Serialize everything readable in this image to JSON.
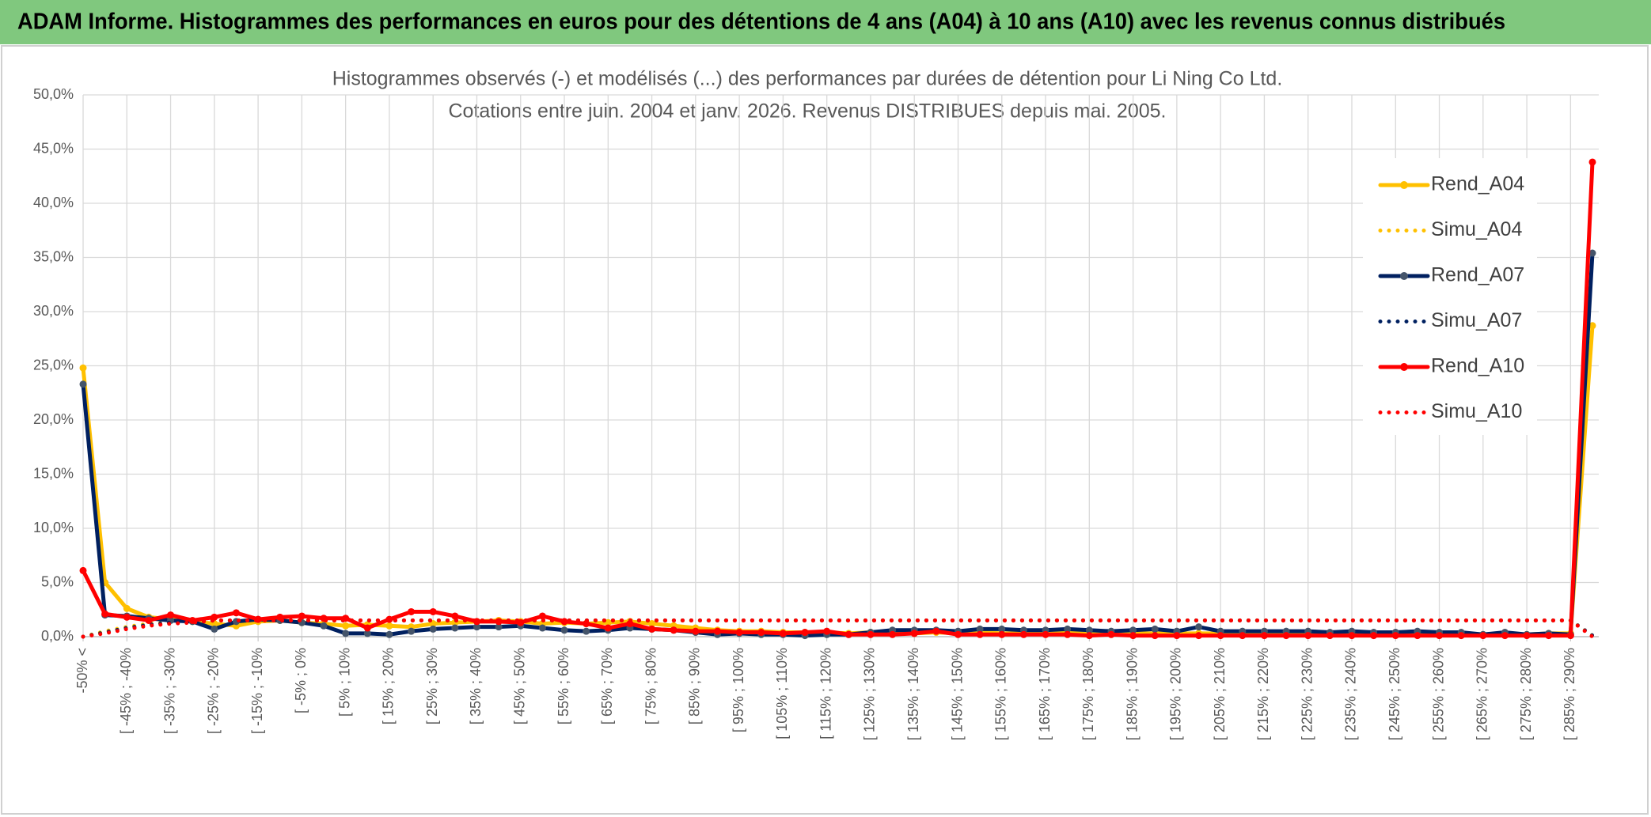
{
  "chart_data": {
    "type": "line",
    "header": "ADAM Informe. Histogrammes des performances en euros pour des détentions de 4 ans (A04) à 10 ans (A10) avec les revenus connus distribués",
    "title": "Histogrammes observés (-) et modélisés (...) des performances par durées de détention pour Li Ning Co Ltd.",
    "subtitle": "Cotations entre juin. 2004 et janv. 2026. Revenus DISTRIBUES depuis mai. 2005.",
    "categories": [
      "-50% <",
      null,
      "[ -45% ; -40%",
      null,
      "[ -35% ; -30%",
      null,
      "[ -25% ; -20%",
      null,
      "[ -15% ; -10%",
      null,
      "[ -5% ; 0%",
      null,
      "[ 5% ; 10%",
      null,
      "[ 15% ; 20%",
      null,
      "[ 25% ; 30%",
      null,
      "[ 35% ; 40%",
      null,
      "[ 45% ; 50%",
      null,
      "[ 55% ; 60%",
      null,
      "[ 65% ; 70%",
      null,
      "[ 75% ; 80%",
      null,
      "[ 85% ; 90%",
      null,
      "[ 95% ; 100%",
      null,
      "[ 105% ; 110%",
      null,
      "[ 115% ; 120%",
      null,
      "[ 125% ; 130%",
      null,
      "[ 135% ; 140%",
      null,
      "[ 145% ; 150%",
      null,
      "[ 155% ; 160%",
      null,
      "[ 165% ; 170%",
      null,
      "[ 175% ; 180%",
      null,
      "[ 185% ; 190%",
      null,
      "[ 195% ; 200%",
      null,
      "[ 205% ; 210%",
      null,
      "[ 215% ; 220%",
      null,
      "[ 225% ; 230%",
      null,
      "[ 235% ; 240%",
      null,
      "[ 245% ; 250%",
      null,
      "[ 255% ; 260%",
      null,
      "[ 265% ; 270%",
      null,
      "[ 275% ; 280%",
      null,
      "[ 285% ; 290%",
      null
    ],
    "series": [
      {
        "name": "Rend_A04",
        "color": "#FFC000",
        "line_style": "solid",
        "values": [
          24.8,
          5.0,
          2.6,
          1.8,
          1.6,
          1.4,
          1.2,
          1.0,
          1.4,
          1.5,
          1.3,
          1.2,
          1.0,
          1.1,
          1.0,
          0.9,
          1.2,
          1.3,
          1.4,
          1.5,
          1.4,
          1.2,
          1.3,
          1.2,
          1.3,
          1.4,
          1.2,
          1.0,
          0.8,
          0.6,
          0.5,
          0.5,
          0.4,
          0.4,
          0.4,
          0.3,
          0.4,
          0.3,
          0.3,
          0.4,
          0.3,
          0.4,
          0.3,
          0.3,
          0.3,
          0.4,
          0.3,
          0.3,
          0.3,
          0.3,
          0.3,
          0.3,
          0.3,
          0.3,
          0.3,
          0.3,
          0.3,
          0.3,
          0.3,
          0.3,
          0.3,
          0.2,
          0.3,
          0.2,
          0.2,
          0.3,
          0.2,
          0.3,
          0.3,
          28.7
        ]
      },
      {
        "name": "Simu_A04",
        "color": "#FFC000",
        "line_style": "dotted",
        "values": [
          0,
          0.5,
          0.9,
          1.2,
          1.3,
          1.4,
          1.5,
          1.5,
          1.5,
          1.5,
          1.5,
          1.5,
          1.5,
          1.5,
          1.5,
          1.5,
          1.5,
          1.5,
          1.5,
          1.5,
          1.5,
          1.5,
          1.5,
          1.5,
          1.5,
          1.5,
          1.5,
          1.5,
          1.5,
          1.5,
          1.5,
          1.5,
          1.5,
          1.5,
          1.5,
          1.5,
          1.5,
          1.5,
          1.5,
          1.5,
          1.5,
          1.5,
          1.5,
          1.5,
          1.5,
          1.5,
          1.5,
          1.5,
          1.5,
          1.5,
          1.5,
          1.5,
          1.5,
          1.5,
          1.5,
          1.5,
          1.5,
          1.5,
          1.5,
          1.5,
          1.5,
          1.5,
          1.5,
          1.5,
          1.5,
          1.5,
          1.5,
          1.5,
          1.5,
          0.1
        ]
      },
      {
        "name": "Rend_A07",
        "color": "#002060",
        "line_style": "solid",
        "values": [
          23.3,
          2.0,
          1.9,
          1.7,
          1.5,
          1.4,
          0.7,
          1.4,
          1.6,
          1.5,
          1.3,
          1.0,
          0.3,
          0.3,
          0.2,
          0.5,
          0.7,
          0.8,
          0.9,
          0.9,
          1.0,
          0.8,
          0.6,
          0.5,
          0.6,
          0.8,
          0.7,
          0.6,
          0.4,
          0.2,
          0.3,
          0.2,
          0.2,
          0.1,
          0.2,
          0.2,
          0.4,
          0.6,
          0.6,
          0.6,
          0.5,
          0.7,
          0.7,
          0.6,
          0.6,
          0.7,
          0.6,
          0.5,
          0.6,
          0.7,
          0.5,
          0.9,
          0.5,
          0.5,
          0.5,
          0.5,
          0.5,
          0.4,
          0.5,
          0.4,
          0.4,
          0.5,
          0.4,
          0.4,
          0.2,
          0.4,
          0.2,
          0.3,
          0.2,
          35.4
        ]
      },
      {
        "name": "Simu_A07",
        "color": "#002060",
        "line_style": "dotted",
        "values": [
          0,
          0.4,
          0.8,
          1.1,
          1.3,
          1.4,
          1.5,
          1.5,
          1.5,
          1.5,
          1.5,
          1.5,
          1.5,
          1.5,
          1.5,
          1.5,
          1.5,
          1.5,
          1.5,
          1.5,
          1.5,
          1.5,
          1.5,
          1.5,
          1.5,
          1.5,
          1.5,
          1.5,
          1.5,
          1.5,
          1.5,
          1.5,
          1.5,
          1.5,
          1.5,
          1.5,
          1.5,
          1.5,
          1.5,
          1.5,
          1.5,
          1.5,
          1.5,
          1.5,
          1.5,
          1.5,
          1.5,
          1.5,
          1.5,
          1.5,
          1.5,
          1.5,
          1.5,
          1.5,
          1.5,
          1.5,
          1.5,
          1.5,
          1.5,
          1.5,
          1.5,
          1.5,
          1.5,
          1.5,
          1.5,
          1.5,
          1.5,
          1.5,
          1.5,
          0.1
        ]
      },
      {
        "name": "Rend_A10",
        "color": "#FF0000",
        "line_style": "solid",
        "values": [
          6.1,
          2.1,
          1.8,
          1.5,
          2.0,
          1.5,
          1.8,
          2.2,
          1.6,
          1.8,
          1.9,
          1.7,
          1.7,
          0.8,
          1.6,
          2.3,
          2.3,
          1.9,
          1.4,
          1.4,
          1.3,
          1.9,
          1.4,
          1.2,
          0.8,
          1.2,
          0.7,
          0.6,
          0.5,
          0.5,
          0.4,
          0.4,
          0.3,
          0.4,
          0.5,
          0.2,
          0.2,
          0.2,
          0.3,
          0.5,
          0.2,
          0.2,
          0.2,
          0.2,
          0.2,
          0.2,
          0.1,
          0.2,
          0.1,
          0.1,
          0.1,
          0.1,
          0.1,
          0.1,
          0.1,
          0.1,
          0.1,
          0.1,
          0.1,
          0.1,
          0.1,
          0.1,
          0.1,
          0.1,
          0.1,
          0.1,
          0.1,
          0.1,
          0.1,
          43.8
        ]
      },
      {
        "name": "Simu_A10",
        "color": "#FF0000",
        "line_style": "dotted",
        "values": [
          0,
          0.3,
          0.7,
          1.0,
          1.2,
          1.3,
          1.5,
          1.5,
          1.5,
          1.5,
          1.5,
          1.5,
          1.5,
          1.5,
          1.5,
          1.5,
          1.5,
          1.5,
          1.5,
          1.5,
          1.5,
          1.5,
          1.5,
          1.5,
          1.5,
          1.5,
          1.5,
          1.5,
          1.5,
          1.5,
          1.5,
          1.5,
          1.5,
          1.5,
          1.5,
          1.5,
          1.5,
          1.5,
          1.5,
          1.5,
          1.5,
          1.5,
          1.5,
          1.5,
          1.5,
          1.5,
          1.5,
          1.5,
          1.5,
          1.5,
          1.5,
          1.5,
          1.5,
          1.5,
          1.5,
          1.5,
          1.5,
          1.5,
          1.5,
          1.5,
          1.5,
          1.5,
          1.5,
          1.5,
          1.5,
          1.5,
          1.5,
          1.5,
          1.5,
          0
        ]
      }
    ],
    "ylim": [
      0,
      50
    ],
    "yticks": [
      {
        "value": 0,
        "label": "0,0%"
      },
      {
        "value": 5,
        "label": "5,0%"
      },
      {
        "value": 10,
        "label": "10,0%"
      },
      {
        "value": 15,
        "label": "15,0%"
      },
      {
        "value": 20,
        "label": "20,0%"
      },
      {
        "value": 25,
        "label": "25,0%"
      },
      {
        "value": 30,
        "label": "30,0%"
      },
      {
        "value": 35,
        "label": "35,0%"
      },
      {
        "value": 40,
        "label": "40,0%"
      },
      {
        "value": 45,
        "label": "45,0%"
      },
      {
        "value": 50,
        "label": "50,0%"
      }
    ],
    "grid": true,
    "legend": "right"
  }
}
